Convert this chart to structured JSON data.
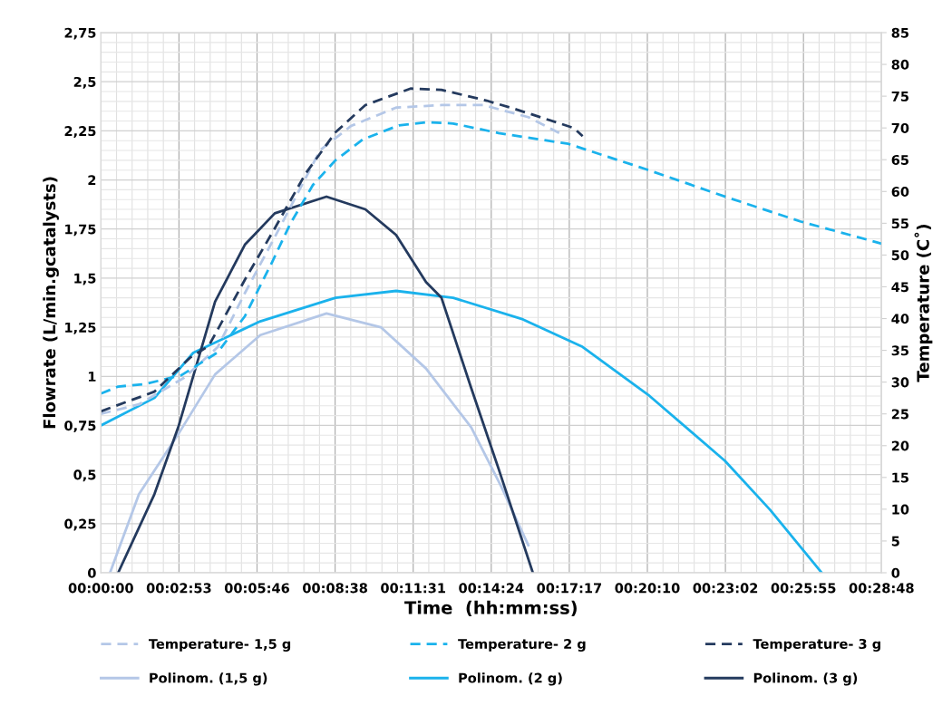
{
  "chart_data": {
    "type": "line",
    "xlabel": "Time  (hh:mm:ss)",
    "ylabel": "Flowrate (L/min.gcatalysts)",
    "y2label": "Temperature (C˚)",
    "xlim": [
      0,
      0.48
    ],
    "xticks": [
      {
        "value": 0,
        "label": "00:00:00"
      },
      {
        "value": 0.048,
        "label": "00:02:53"
      },
      {
        "value": 0.096,
        "label": "00:05:46"
      },
      {
        "value": 0.144,
        "label": "00:08:38"
      },
      {
        "value": 0.192,
        "label": "00:11:31"
      },
      {
        "value": 0.24,
        "label": "00:14:24"
      },
      {
        "value": 0.288,
        "label": "00:17:17"
      },
      {
        "value": 0.336,
        "label": "00:20:10"
      },
      {
        "value": 0.384,
        "label": "00:23:02"
      },
      {
        "value": 0.432,
        "label": "00:25:55"
      },
      {
        "value": 0.48,
        "label": "00:28:48"
      }
    ],
    "ylim": [
      0,
      2.75
    ],
    "yticks": [
      0,
      {
        "value": 0.25,
        "label": "0,25"
      },
      {
        "value": 0.5,
        "label": "0,5"
      },
      {
        "value": 0.75,
        "label": "0,75"
      },
      1,
      {
        "value": 1.25,
        "label": "1,25"
      },
      {
        "value": 1.5,
        "label": "1,5"
      },
      {
        "value": 1.75,
        "label": "1,75"
      },
      2,
      {
        "value": 2.25,
        "label": "2,25"
      },
      {
        "value": 2.5,
        "label": "2,5"
      },
      {
        "value": 2.75,
        "label": "2,75"
      }
    ],
    "y2lim": [
      0,
      85
    ],
    "y2ticks": [
      0,
      5,
      10,
      15,
      20,
      25,
      30,
      35,
      40,
      45,
      50,
      55,
      60,
      65,
      70,
      75,
      80,
      85
    ],
    "grid": true,
    "legend": "bottom",
    "marker": "none",
    "series": [
      {
        "name": "Temperature- 1,5 g",
        "color": "#b4c7e7",
        "axis": "y2",
        "line_style": "dashed",
        "x": [
          0,
          0.0234,
          0.0512,
          0.0718,
          0.0885,
          0.1052,
          0.1348,
          0.1537,
          0.1815,
          0.2094,
          0.235,
          0.2628,
          0.2818
        ],
        "values": [
          25.0,
          26.5,
          30.7,
          35.5,
          44,
          52,
          66.5,
          70.3,
          73.2,
          73.6,
          73.6,
          71.7,
          69.2
        ]
      },
      {
        "name": "Temperature- 2 g",
        "color": "#1ab2ec",
        "axis": "y2",
        "line_style": "dashed",
        "x": [
          0,
          0.0106,
          0.0273,
          0.0496,
          0.0719,
          0.0886,
          0.1053,
          0.1164,
          0.1303,
          0.1442,
          0.161,
          0.1832,
          0.2,
          0.2166,
          0.2445,
          0.2873,
          0.3352,
          0.3837,
          0.4299,
          0.48
        ],
        "values": [
          28.2,
          29.3,
          29.7,
          31.1,
          34.7,
          40.4,
          48.9,
          54.9,
          61.0,
          64.9,
          68.2,
          70.4,
          70.9,
          70.7,
          69.2,
          67.5,
          63.5,
          59.2,
          55.3,
          51.8
        ]
      },
      {
        "name": "Temperature- 3 g",
        "color": "#243a5e",
        "axis": "y2",
        "line_style": "dashed",
        "x": [
          0,
          0.0329,
          0.0551,
          0.0663,
          0.0885,
          0.1069,
          0.1258,
          0.1442,
          0.1626,
          0.1904,
          0.2094,
          0.2372,
          0.2556,
          0.2907,
          0.2962
        ],
        "values": [
          25.4,
          28.5,
          33.9,
          35.7,
          46.1,
          54.2,
          62.8,
          69.3,
          73.6,
          76.2,
          76.0,
          74.3,
          72.9,
          70.0,
          68.7
        ]
      },
      {
        "name": "Polinom. (1,5 g)",
        "color": "#b4c7e7",
        "axis": "y",
        "line_style": "solid",
        "x": [
          0.0056,
          0.0234,
          0.0479,
          0.0702,
          0.098,
          0.1387,
          0.1721,
          0.1999,
          0.2277,
          0.2461,
          0.2628
        ],
        "values": [
          0,
          0.4,
          0.71,
          1.01,
          1.21,
          1.32,
          1.25,
          1.04,
          0.74,
          0.44,
          0.14
        ]
      },
      {
        "name": "Polinom. (2 g)",
        "color": "#1ab2ec",
        "axis": "y",
        "line_style": "solid",
        "x": [
          0,
          0.0329,
          0.0568,
          0.098,
          0.1442,
          0.1815,
          0.2166,
          0.2595,
          0.2962,
          0.3374,
          0.3837,
          0.4115,
          0.4432
        ],
        "values": [
          0.75,
          0.89,
          1.12,
          1.28,
          1.4,
          1.435,
          1.4,
          1.29,
          1.15,
          0.9,
          0.57,
          0.32,
          0
        ]
      },
      {
        "name": "Polinom. (3 g)",
        "color": "#243a5e",
        "axis": "y",
        "line_style": "solid",
        "x": [
          0.0106,
          0.0329,
          0.0479,
          0.0702,
          0.0885,
          0.1069,
          0.1387,
          0.1626,
          0.1815,
          0.1999,
          0.2094,
          0.2277,
          0.2445,
          0.2656
        ],
        "values": [
          0,
          0.4,
          0.75,
          1.38,
          1.67,
          1.83,
          1.915,
          1.85,
          1.72,
          1.48,
          1.4,
          0.94,
          0.53,
          0
        ]
      }
    ]
  }
}
